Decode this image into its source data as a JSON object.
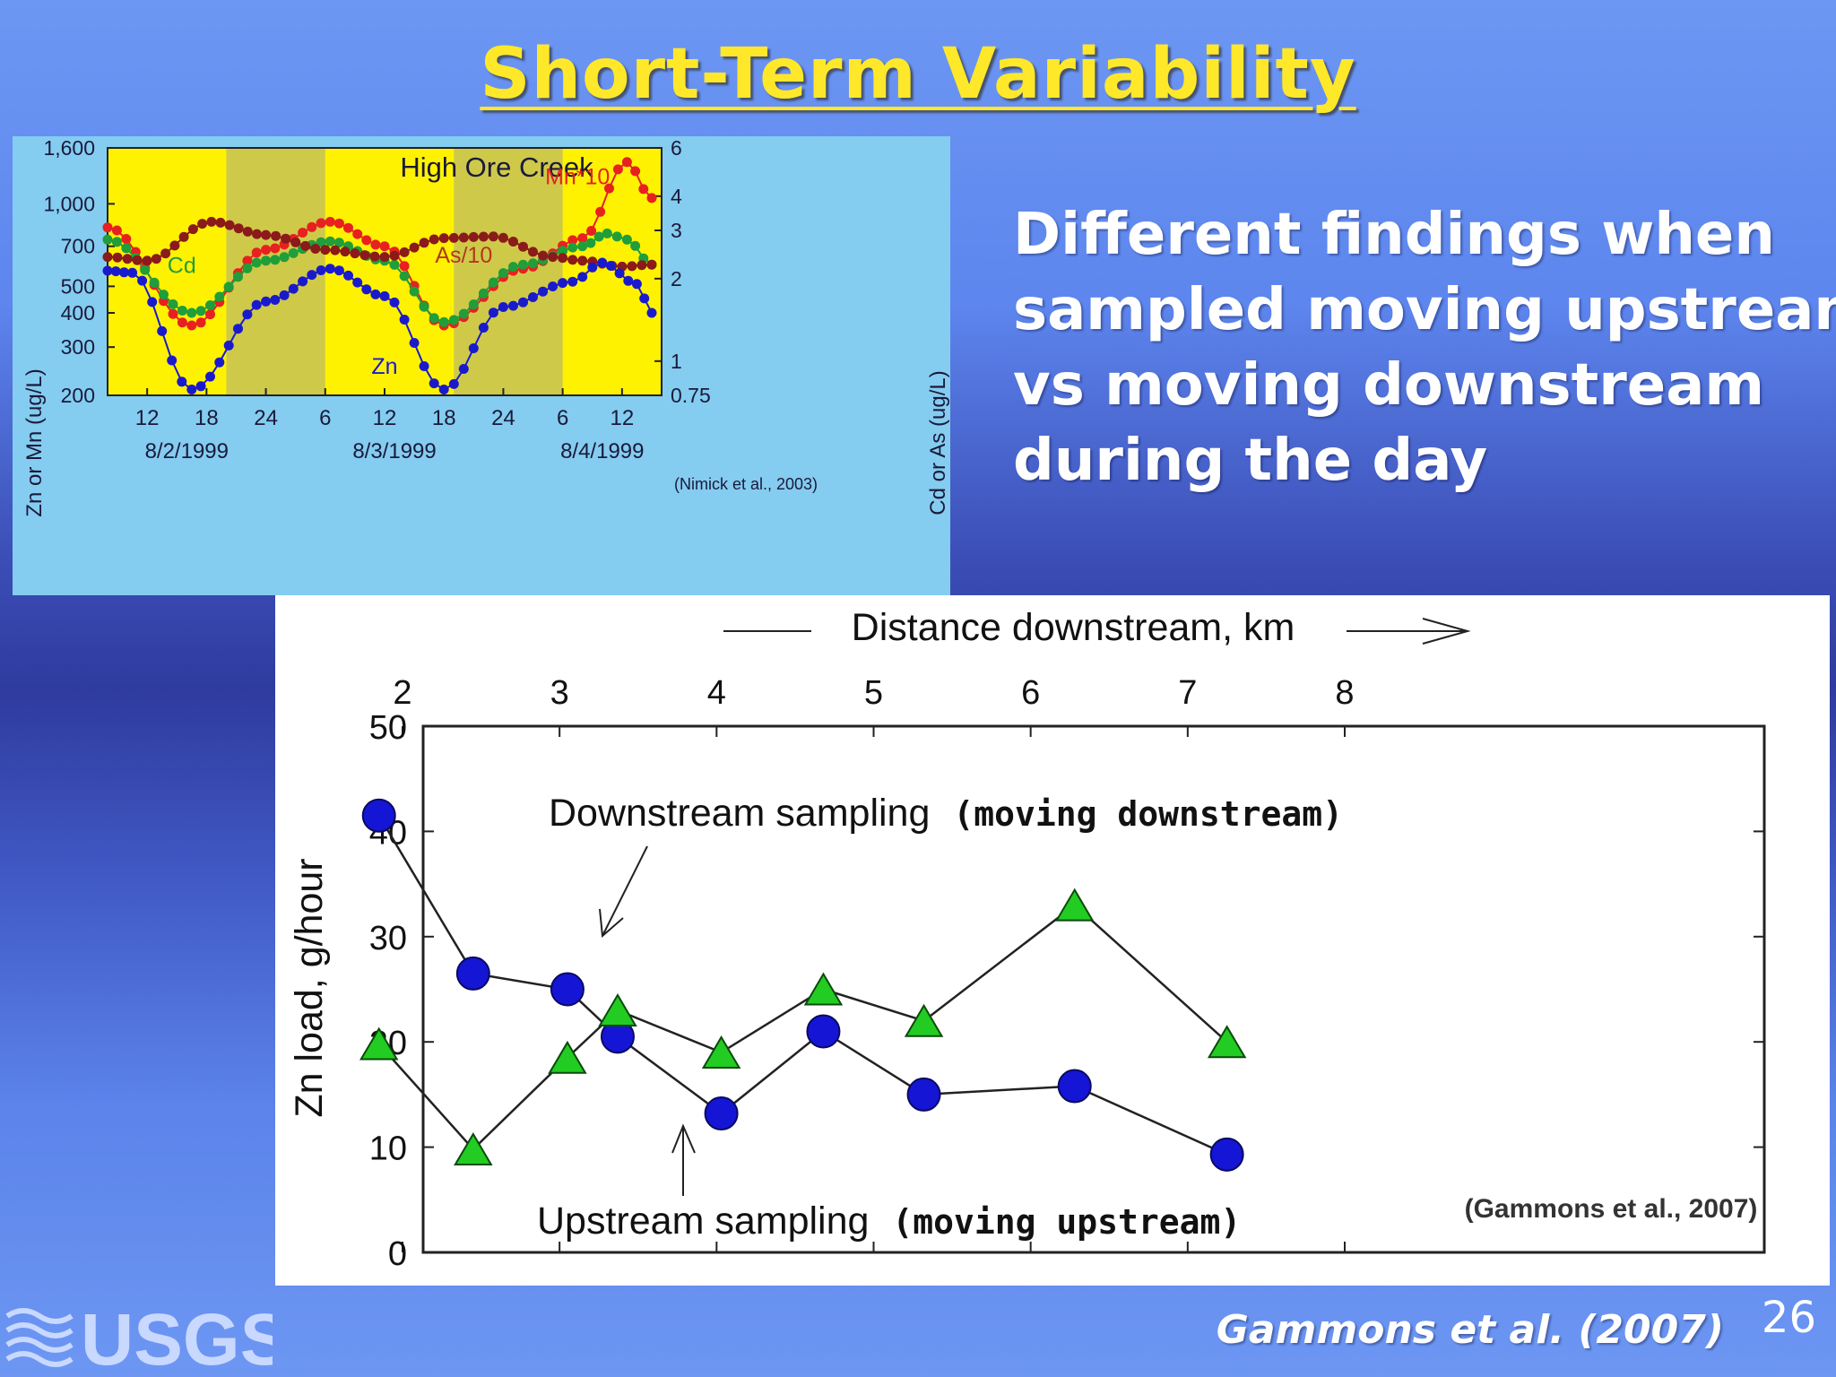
{
  "slide": {
    "title": "Short-Term Variability",
    "text_lines": [
      "Different findings when",
      "sampled moving upstream",
      "vs moving downstream",
      "during the day"
    ],
    "citation": "Gammons et al. (2007)",
    "page_number": "26",
    "logo_text": "USGS",
    "colors": {
      "background": "#5b83ea",
      "title": "#ffe82a",
      "text": "#ffffff"
    }
  },
  "chart_data": [
    {
      "type": "line",
      "title": "High Ore Creek",
      "ylabel_left": "Zn or Mn (ug/L)",
      "ylabel_right": "Cd or As (ug/L)",
      "left_axis_scale": "log",
      "left_ticks": [
        "1,600",
        "1,000",
        "700",
        "500",
        "400",
        "300",
        "200"
      ],
      "left_tick_values": [
        1600,
        1000,
        700,
        500,
        400,
        300,
        200
      ],
      "right_ticks": [
        "6",
        "4",
        "3",
        "2",
        "1",
        "0.75"
      ],
      "right_tick_values": [
        6,
        4,
        3,
        2,
        1,
        0.75
      ],
      "ylim_left": [
        200,
        1600
      ],
      "x_ticks": [
        "12",
        "18",
        "24",
        "6",
        "12",
        "18",
        "24",
        "6",
        "12"
      ],
      "x_tick_hours": [
        12,
        18,
        24,
        30,
        36,
        42,
        48,
        54,
        60
      ],
      "date_labels": [
        {
          "label": "8/2/1999",
          "hour": 16
        },
        {
          "label": "8/3/1999",
          "hour": 37
        },
        {
          "label": "8/4/1999",
          "hour": 58
        }
      ],
      "xlim_hours": [
        8,
        64
      ],
      "night_bands_hours": [
        [
          20,
          30
        ],
        [
          43,
          54
        ]
      ],
      "annotation": "(Nimick et al., 2003)",
      "colors": {
        "plot_bg": "#fff200",
        "night": "#cfc94a",
        "frame": "#84ccf0"
      },
      "series": [
        {
          "name": "Mn*10",
          "axis": "left",
          "color": "#e82020",
          "x": [
            8,
            16.5,
            24,
            30.5,
            36,
            42,
            50,
            56,
            60.5,
            63
          ],
          "y": [
            820,
            360,
            680,
            860,
            700,
            360,
            580,
            750,
            1420,
            1050
          ]
        },
        {
          "name": "Cd",
          "axis": "left",
          "color": "#1f9e3a",
          "x": [
            8,
            16.5,
            24,
            30.5,
            36,
            42,
            50,
            56,
            58.5,
            60.5,
            63
          ],
          "y": [
            740,
            400,
            620,
            730,
            620,
            370,
            600,
            700,
            780,
            740,
            600
          ]
        },
        {
          "name": "As/10",
          "axis": "left",
          "color": "#8b1a1a",
          "x": [
            8,
            12,
            18.5,
            24,
            30,
            36,
            42,
            47,
            53,
            56,
            60,
            63
          ],
          "y": [
            640,
            620,
            860,
            770,
            680,
            640,
            750,
            760,
            640,
            620,
            590,
            600
          ]
        },
        {
          "name": "Zn",
          "axis": "left",
          "color": "#1a1acd",
          "x": [
            8,
            10.5,
            16.5,
            24,
            30.5,
            36,
            42,
            48,
            55,
            58,
            61.5,
            63
          ],
          "y": [
            570,
            560,
            210,
            440,
            580,
            460,
            210,
            420,
            520,
            610,
            510,
            400
          ]
        }
      ]
    },
    {
      "type": "scatter",
      "xlabel": "Distance downstream, km",
      "ylabel": "Zn load, g/hour",
      "x_ticks": [
        "2",
        "3",
        "4",
        "5",
        "6",
        "7",
        "8"
      ],
      "y_ticks": [
        "0",
        "10",
        "20",
        "30",
        "40",
        "50"
      ],
      "xlim": [
        1.5,
        8
      ],
      "ylim": [
        0,
        50
      ],
      "annotation": "(Gammons et al., 2007)",
      "series": [
        {
          "name": "Downstream sampling",
          "label_suffix": "(moving downstream)",
          "marker": "circle",
          "color": "#1515d6",
          "x": [
            1.85,
            2.45,
            3.05,
            3.37,
            4.03,
            4.68,
            5.32,
            6.28,
            7.25
          ],
          "y": [
            41.5,
            26.5,
            25.0,
            20.5,
            13.2,
            21.0,
            15.0,
            15.8,
            9.3
          ]
        },
        {
          "name": "Upstream sampling",
          "label_suffix": "(moving upstream)",
          "marker": "triangle",
          "color": "#22cc22",
          "x": [
            1.85,
            2.45,
            3.05,
            3.37,
            4.03,
            4.68,
            5.32,
            6.28,
            7.25
          ],
          "y": [
            19.8,
            9.8,
            18.5,
            23.0,
            19.0,
            25.0,
            22.0,
            33.0,
            20.0
          ]
        }
      ]
    }
  ]
}
